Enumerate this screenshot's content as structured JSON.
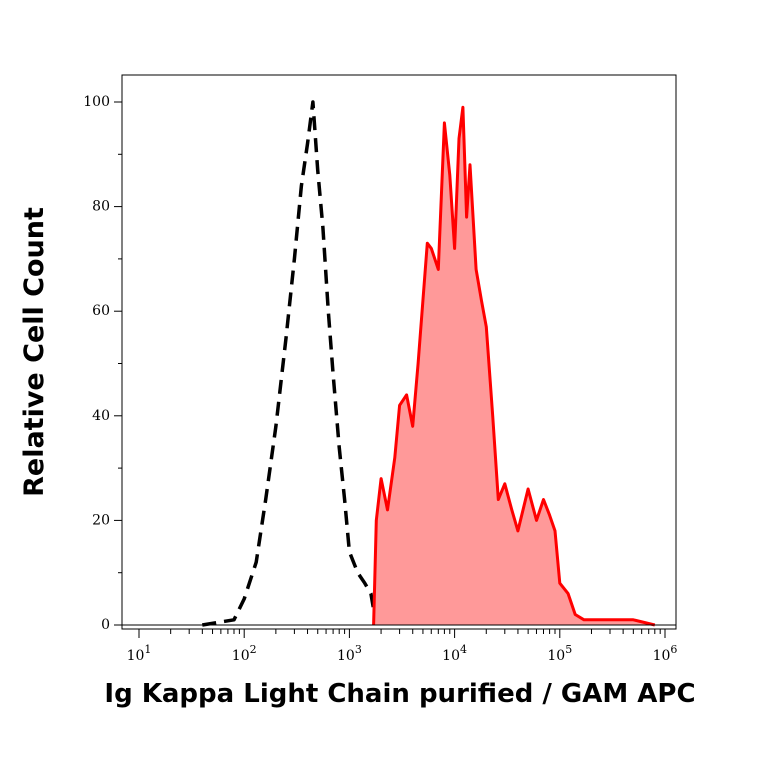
{
  "chart_data": {
    "type": "area",
    "title": "",
    "xlabel": "Ig Kappa Light Chain purified / GAM APC",
    "ylabel": "Relative Cell Count",
    "xscale": "log",
    "xlim": [
      10,
      1000000
    ],
    "ylim": [
      0,
      105
    ],
    "grid": false,
    "legend": "none",
    "x_ticks": [
      {
        "base": "10",
        "exp": "1",
        "value": 10
      },
      {
        "base": "10",
        "exp": "2",
        "value": 100
      },
      {
        "base": "10",
        "exp": "3",
        "value": 1000
      },
      {
        "base": "10",
        "exp": "4",
        "value": 10000
      },
      {
        "base": "10",
        "exp": "5",
        "value": 100000
      },
      {
        "base": "10",
        "exp": "6",
        "value": 1000000
      }
    ],
    "y_ticks": [
      "0",
      "20",
      "40",
      "60",
      "80",
      "100"
    ],
    "y_tick_values": [
      0,
      20,
      40,
      60,
      80,
      100
    ],
    "series": [
      {
        "style": "dashed",
        "color": "#000000",
        "fill": "none",
        "x": [
          40,
          80,
          100,
          130,
          160,
          200,
          250,
          300,
          350,
          400,
          450,
          500,
          560,
          630,
          700,
          800,
          900,
          1000,
          1200,
          1400,
          1600,
          1800
        ],
        "y": [
          0,
          1,
          5,
          12,
          24,
          38,
          55,
          70,
          84,
          92,
          100,
          87,
          76,
          60,
          48,
          34,
          24,
          14,
          10,
          8,
          6,
          0
        ]
      },
      {
        "style": "solid",
        "color": "#ff0000",
        "fill": "#ff9999",
        "x": [
          1700,
          1800,
          2000,
          2300,
          2700,
          3000,
          3500,
          4000,
          4500,
          5000,
          5500,
          6000,
          7000,
          8000,
          9000,
          10000,
          11000,
          12000,
          13000,
          14000,
          16000,
          18000,
          20000,
          23000,
          26000,
          30000,
          35000,
          40000,
          50000,
          60000,
          70000,
          80000,
          90000,
          100000,
          120000,
          140000,
          170000,
          200000,
          300000,
          500000,
          800000
        ],
        "y": [
          0,
          20,
          28,
          22,
          32,
          42,
          44,
          38,
          50,
          62,
          73,
          72,
          68,
          96,
          86,
          72,
          93,
          99,
          78,
          88,
          68,
          62,
          57,
          40,
          24,
          27,
          22,
          18,
          26,
          20,
          24,
          21,
          18,
          8,
          6,
          2,
          1,
          1,
          1,
          1,
          0
        ]
      }
    ]
  }
}
